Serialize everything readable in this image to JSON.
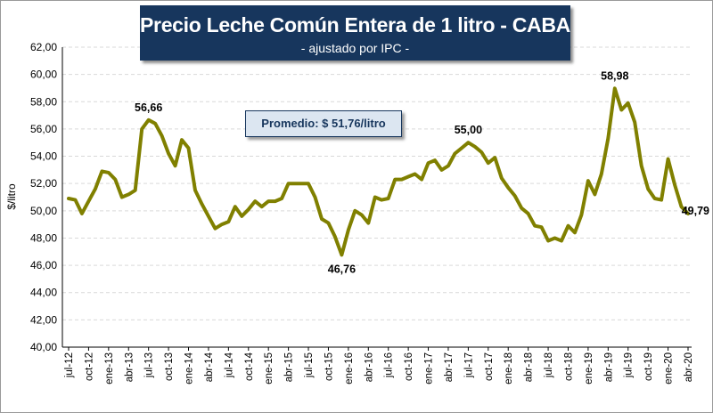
{
  "colors": {
    "line": "#808000",
    "title_bg": "#17365d",
    "grid": "#d9d9d9",
    "avg_bg": "#dce6f1"
  },
  "chart_data": {
    "type": "line",
    "title": "Precio Leche Común Entera de 1 litro - CABA",
    "subtitle": "- ajustado por IPC -",
    "ylabel": "$/litro",
    "xlabel": "",
    "ylim": [
      40,
      62
    ],
    "y_ticks": [
      "40,00",
      "42,00",
      "44,00",
      "46,00",
      "48,00",
      "50,00",
      "52,00",
      "54,00",
      "56,00",
      "58,00",
      "60,00",
      "62,00"
    ],
    "x_ticks": [
      "jul-12",
      "oct-12",
      "ene-13",
      "abr-13",
      "jul-13",
      "oct-13",
      "ene-14",
      "abr-14",
      "jul-14",
      "oct-14",
      "ene-15",
      "abr-15",
      "jul-15",
      "oct-15",
      "ene-16",
      "abr-16",
      "jul-16",
      "oct-16",
      "ene-17",
      "abr-17",
      "jul-17",
      "oct-17",
      "ene-18",
      "abr-18",
      "jul-18",
      "oct-18",
      "ene-19",
      "abr-19",
      "jul-19",
      "oct-19",
      "ene-20",
      "abr-20"
    ],
    "grid": "horizontal",
    "legend": "none",
    "annotation": "Promedio: $ 51,76/litro",
    "series": [
      {
        "x_start": "jul-12",
        "x_end": "abr-20",
        "values": [
          50.9,
          50.8,
          49.8,
          50.7,
          51.6,
          52.9,
          52.8,
          52.3,
          51.0,
          51.2,
          51.5,
          56.0,
          56.66,
          56.4,
          55.5,
          54.2,
          53.3,
          55.2,
          54.6,
          51.5,
          50.5,
          49.6,
          48.7,
          49.0,
          49.2,
          50.3,
          49.6,
          50.1,
          50.7,
          50.3,
          50.7,
          50.7,
          50.9,
          52.0,
          52.0,
          52.0,
          52.0,
          51.0,
          49.4,
          49.1,
          48.1,
          46.76,
          48.6,
          50.0,
          49.7,
          49.1,
          51.0,
          50.8,
          50.9,
          52.3,
          52.3,
          52.5,
          52.7,
          52.3,
          53.5,
          53.7,
          53.0,
          53.3,
          54.2,
          54.6,
          55.0,
          54.7,
          54.3,
          53.5,
          53.9,
          52.4,
          51.7,
          51.1,
          50.2,
          49.8,
          48.9,
          48.8,
          47.8,
          48.0,
          47.8,
          48.9,
          48.4,
          49.7,
          52.2,
          51.2,
          52.7,
          55.3,
          58.98,
          57.4,
          57.9,
          56.5,
          53.3,
          51.6,
          50.9,
          50.8,
          53.8,
          51.9,
          50.3,
          49.79
        ]
      }
    ],
    "data_labels": [
      {
        "index": 12,
        "text": "56,66"
      },
      {
        "index": 41,
        "text": "46,76"
      },
      {
        "index": 60,
        "text": "55,00"
      },
      {
        "index": 82,
        "text": "58,98"
      },
      {
        "index": 93,
        "text": "49,79"
      }
    ]
  }
}
